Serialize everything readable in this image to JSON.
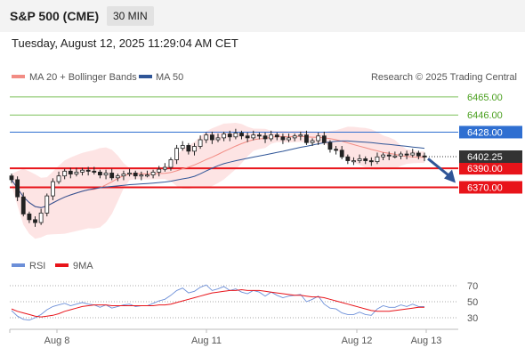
{
  "header": {
    "instrument": "S&P 500 (CME)",
    "timeframe": "30 MIN",
    "datetime": "Tuesday, August 12, 2025 11:29:04 AM CET"
  },
  "legend": {
    "ma20_label": "MA 20 + Bollinger Bands",
    "ma50_label": "MA 50",
    "rsi_label": "RSI",
    "ma9_label": "9MA",
    "credit": "Research © 2025 Trading Central"
  },
  "colors": {
    "ma20": "#f28c84",
    "ma50": "#2f5597",
    "band_fill": "#fde4e4",
    "resistance_green": "#7dc15a",
    "pivot_blue": "#2f6fd1",
    "support_red": "#e8141a",
    "bull": "#ffffff",
    "bear": "#222222",
    "arrow": "#2f5597",
    "rsi": "#6c8fd8",
    "rsi_ma": "#e8141a"
  },
  "chart_data": [
    {
      "type": "line",
      "title": "",
      "x_labels": [
        "Aug 8",
        "Aug 11",
        "Aug 12",
        "Aug 13"
      ],
      "ylim": [
        6305,
        6478
      ],
      "price_levels": [
        {
          "value": 6465.0,
          "label": "6465.00",
          "kind": "resistance"
        },
        {
          "value": 6446.0,
          "label": "6446.00",
          "kind": "resistance"
        },
        {
          "value": 6428.0,
          "label": "6428.00",
          "kind": "pivot"
        },
        {
          "value": 6390.0,
          "label": "6390.00",
          "kind": "support"
        },
        {
          "value": 6370.0,
          "label": "6370.00",
          "kind": "support"
        }
      ],
      "last_price": {
        "value": 6402.25,
        "label": "6402.25"
      },
      "forecast": "down-toward-6370",
      "close_series": [
        6378,
        6360,
        6342,
        6336,
        6333,
        6343,
        6361,
        6376,
        6382,
        6387,
        6384,
        6386,
        6388,
        6387,
        6386,
        6383,
        6385,
        6380,
        6382,
        6384,
        6385,
        6382,
        6383,
        6383,
        6386,
        6389,
        6391,
        6399,
        6411,
        6414,
        6408,
        6413,
        6420,
        6425,
        6420,
        6422,
        6426,
        6423,
        6427,
        6424,
        6422,
        6425,
        6424,
        6421,
        6425,
        6423,
        6420,
        6422,
        6424,
        6425,
        6417,
        6419,
        6424,
        6417,
        6410,
        6409,
        6402,
        6398,
        6398,
        6400,
        6398,
        6397,
        6402,
        6404,
        6403,
        6403,
        6405,
        6404,
        6406,
        6403,
        6402
      ]
    },
    {
      "type": "line",
      "title": "",
      "series_names": [
        "RSI",
        "9MA"
      ],
      "yticks": [
        70,
        50,
        30
      ],
      "ylim": [
        20,
        80
      ],
      "rsi": [
        39,
        32,
        28,
        27,
        30,
        34,
        40,
        44,
        46,
        48,
        45,
        47,
        49,
        47,
        46,
        43,
        46,
        42,
        44,
        46,
        47,
        44,
        45,
        45,
        48,
        51,
        53,
        58,
        64,
        67,
        61,
        63,
        68,
        71,
        64,
        66,
        69,
        64,
        66,
        62,
        60,
        64,
        62,
        57,
        62,
        58,
        55,
        57,
        58,
        59,
        50,
        53,
        57,
        47,
        42,
        41,
        36,
        34,
        34,
        37,
        34,
        33,
        41,
        45,
        43,
        43,
        46,
        44,
        47,
        44,
        44
      ],
      "rsi_ma": [
        41,
        38,
        36,
        34,
        32,
        31,
        32,
        33,
        35,
        38,
        40,
        42,
        44,
        45,
        46,
        46,
        46,
        45,
        45,
        45,
        45,
        45,
        45,
        45,
        45,
        46,
        46,
        47,
        49,
        51,
        53,
        55,
        57,
        59,
        61,
        62,
        63,
        64,
        64,
        65,
        64,
        64,
        64,
        63,
        62,
        61,
        60,
        59,
        58,
        58,
        57,
        56,
        56,
        55,
        53,
        51,
        49,
        47,
        45,
        43,
        41,
        39,
        38,
        38,
        38,
        39,
        40,
        41,
        42,
        43,
        43
      ]
    }
  ]
}
